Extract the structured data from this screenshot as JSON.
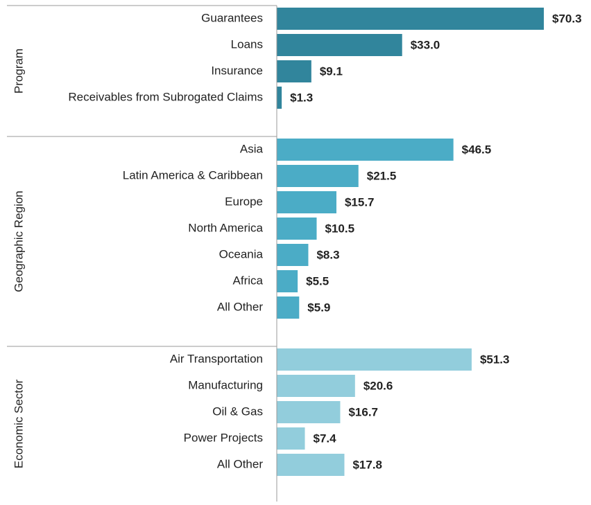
{
  "chart_data": {
    "type": "bar",
    "groups": [
      {
        "name": "Program",
        "color": "#31859c",
        "categories": [
          "Guarantees",
          "Loans",
          "Insurance",
          "Receivables from Subrogated Claims"
        ],
        "values": [
          70.3,
          33.0,
          9.1,
          1.3
        ],
        "value_labels": [
          "$70.3",
          "$33.0",
          "$9.1",
          "$1.3"
        ]
      },
      {
        "name": "Geographic Region",
        "color": "#4bacc6",
        "categories": [
          "Asia",
          "Latin America & Caribbean",
          "Europe",
          "North America",
          "Oceania",
          "Africa",
          "All Other"
        ],
        "values": [
          46.5,
          21.5,
          15.7,
          10.5,
          8.3,
          5.5,
          5.9
        ],
        "value_labels": [
          "$46.5",
          "$21.5",
          "$15.7",
          "$10.5",
          "$8.3",
          "$5.5",
          "$5.9"
        ]
      },
      {
        "name": "Economic Sector",
        "color": "#92cddc",
        "categories": [
          "Air Transportation",
          "Manufacturing",
          "Oil & Gas",
          "Power Projects",
          "All Other"
        ],
        "values": [
          51.3,
          20.6,
          16.7,
          7.4,
          17.8
        ],
        "value_labels": [
          "$51.3",
          "$20.6",
          "$16.7",
          "$7.4",
          "$17.8"
        ]
      }
    ]
  }
}
